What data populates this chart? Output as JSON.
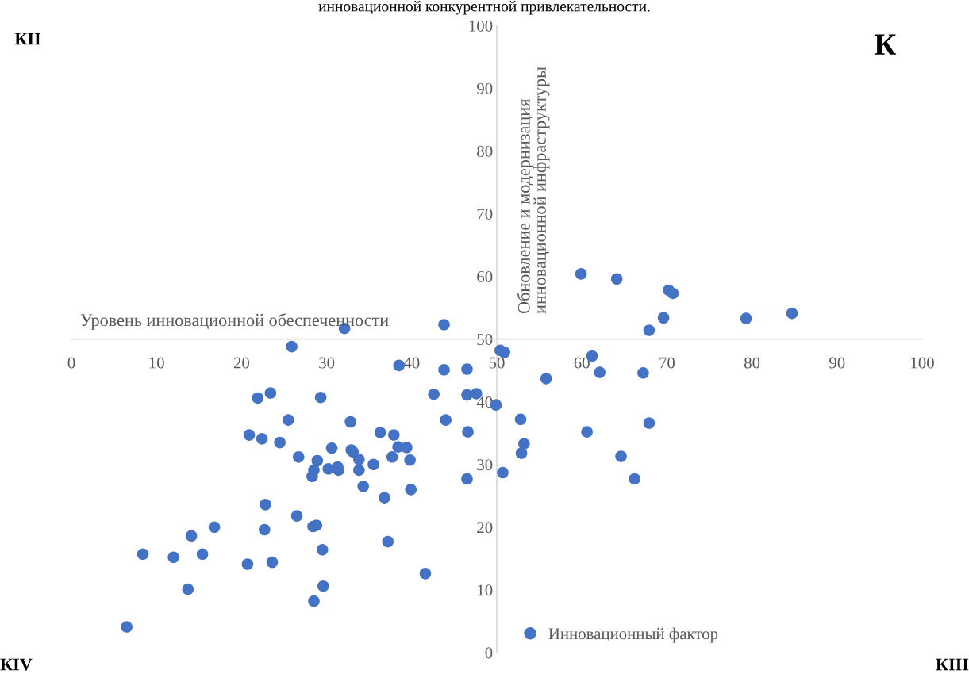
{
  "chart_data": {
    "type": "scatter",
    "title": "инновационной конкурентной привлекательности.",
    "xlabel": "Уровень инновационной обеспеченности",
    "ylabel": "Обновление и модернизация инновационной инфраструктуры",
    "annotations": [
      "КII",
      "К",
      "КIV",
      "КIII"
    ],
    "xlim": [
      0,
      100
    ],
    "ylim": [
      0,
      100
    ],
    "xticks": [
      0,
      10,
      20,
      30,
      40,
      50,
      60,
      70,
      80,
      90,
      100
    ],
    "yticks": [
      0,
      10,
      20,
      30,
      40,
      50,
      60,
      70,
      80,
      90,
      100
    ],
    "grid": false,
    "legend": "bottom",
    "marker": "circle",
    "series": [
      {
        "name": "Инновационный фактор",
        "color": "#4472c4",
        "x": [
          6.5,
          8.4,
          12.0,
          13.7,
          14.1,
          15.4,
          16.8,
          20.7,
          20.9,
          21.9,
          22.4,
          22.7,
          22.8,
          23.4,
          23.6,
          24.5,
          25.5,
          25.9,
          26.5,
          26.7,
          28.3,
          28.4,
          28.5,
          28.5,
          28.8,
          28.9,
          29.3,
          29.5,
          29.6,
          30.2,
          30.6,
          31.3,
          31.4,
          32.1,
          32.8,
          32.9,
          33.1,
          33.8,
          33.8,
          34.3,
          35.5,
          36.3,
          36.8,
          37.2,
          37.7,
          37.9,
          38.4,
          38.5,
          39.4,
          39.8,
          39.9,
          41.6,
          42.6,
          43.8,
          43.8,
          44.0,
          46.5,
          46.5,
          46.5,
          46.6,
          47.6,
          49.9,
          50.4,
          50.7,
          50.9,
          52.8,
          52.9,
          53.2,
          55.8,
          59.9,
          60.6,
          61.2,
          62.1,
          64.1,
          64.6,
          66.2,
          67.2,
          67.9,
          67.9,
          69.6,
          70.2,
          70.7,
          79.3,
          84.7
        ],
        "values": [
          4.1,
          15.7,
          15.2,
          10.1,
          18.6,
          15.7,
          20.0,
          14.1,
          34.7,
          40.6,
          34.1,
          19.6,
          23.6,
          41.4,
          14.4,
          33.5,
          37.1,
          48.8,
          21.8,
          31.2,
          28.1,
          20.1,
          29.1,
          8.2,
          20.3,
          30.6,
          40.7,
          16.4,
          10.6,
          29.3,
          32.6,
          29.6,
          29.1,
          51.7,
          36.8,
          32.3,
          32.0,
          30.8,
          29.1,
          26.5,
          30.0,
          35.1,
          24.7,
          17.7,
          31.2,
          34.7,
          32.8,
          45.8,
          32.7,
          30.7,
          26.0,
          12.6,
          41.2,
          45.1,
          52.3,
          37.1,
          45.2,
          27.7,
          41.1,
          35.2,
          41.3,
          39.5,
          48.2,
          28.7,
          47.9,
          37.2,
          31.8,
          33.3,
          43.7,
          60.4,
          35.2,
          47.3,
          44.7,
          59.6,
          31.3,
          27.7,
          44.6,
          51.4,
          36.6,
          53.4,
          57.8,
          57.3,
          53.3,
          54.1
        ]
      }
    ]
  }
}
